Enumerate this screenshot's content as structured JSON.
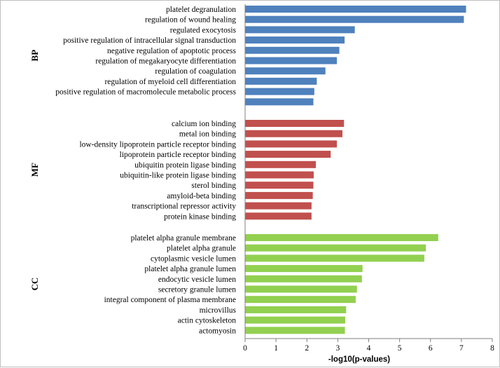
{
  "chart_data": {
    "type": "bar",
    "orientation": "horizontal",
    "title": "",
    "xlabel": "-log10(p-values)",
    "ylabel": "",
    "xlim": [
      0,
      8
    ],
    "xticks": [
      0,
      1,
      2,
      3,
      4,
      5,
      6,
      7,
      8
    ],
    "grid": false,
    "legend": "none",
    "groups": [
      {
        "name": "BP",
        "color": "#4f81bd",
        "categories": [
          "platelet degranulation",
          "regulation of wound healing",
          "regulated exocytosis",
          "positive regulation of intracellular signal transduction",
          "negative regulation of apoptotic process",
          "regulation of megakaryocyte differentiation",
          "regulation of coagulation",
          "regulation of myeloid cell differentiation",
          "positive regulation of macromolecule metabolic process",
          ""
        ],
        "values": [
          7.15,
          7.08,
          3.55,
          3.22,
          3.05,
          2.97,
          2.6,
          2.32,
          2.24,
          2.21
        ]
      },
      {
        "name": "MF",
        "color": "#c0504d",
        "categories": [
          "calcium ion binding",
          "metal ion binding",
          "low-density lipoprotein particle receptor binding",
          "lipoprotein particle receptor binding",
          "ubiquitin protein ligase binding",
          "ubiquitin-like protein ligase binding",
          "sterol binding",
          "amyloid-beta binding",
          "transcriptional repressor activity",
          "protein kinase binding"
        ],
        "values": [
          3.2,
          3.15,
          2.97,
          2.77,
          2.29,
          2.22,
          2.21,
          2.19,
          2.15,
          2.15
        ]
      },
      {
        "name": "CC",
        "color": "#92d050",
        "categories": [
          "platelet alpha granule membrane",
          "platelet alpha granule",
          "cytoplasmic vesicle lumen",
          "platelet alpha granule lumen",
          "endocytic vesicle lumen",
          "secretory granule lumen",
          "integral component of plasma membrane",
          "microvillus",
          "actin cytoskeleton",
          "actomyosin"
        ],
        "values": [
          6.25,
          5.85,
          5.8,
          3.8,
          3.78,
          3.62,
          3.58,
          3.27,
          3.24,
          3.23
        ]
      }
    ]
  }
}
